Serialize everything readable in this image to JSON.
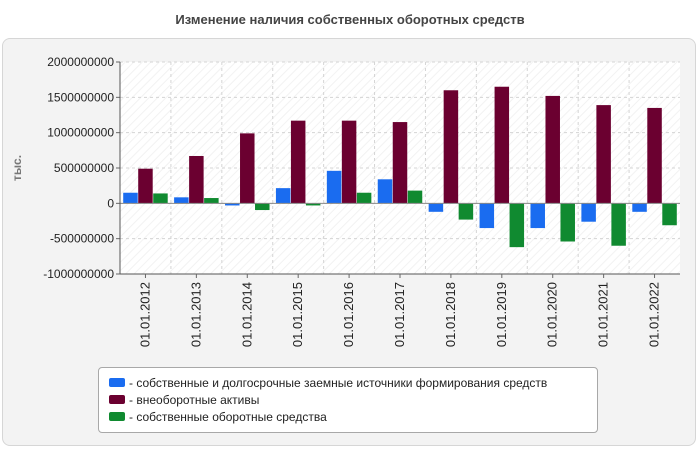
{
  "title": "Изменение наличия собственных оборотных средств",
  "chart_data": {
    "type": "bar",
    "title": "Изменение наличия собственных оборотных средств",
    "xlabel": "",
    "ylabel": "тыс.",
    "ylim": [
      -1000000000,
      2000000000
    ],
    "yticks": [
      2000000000,
      1500000000,
      1000000000,
      500000000,
      0,
      -500000000,
      -1000000000
    ],
    "ytick_labels": [
      "2000000000",
      "1500000000",
      "1000000000",
      "500000000",
      "0",
      "-500000000",
      "-1000000000"
    ],
    "grid": true,
    "legend_position": "bottom",
    "categories": [
      "01.01.2012",
      "01.01.2013",
      "01.01.2014",
      "01.01.2015",
      "01.01.2016",
      "01.01.2017",
      "01.01.2018",
      "01.01.2019",
      "01.01.2020",
      "01.01.2021",
      "01.01.2022"
    ],
    "series": [
      {
        "name": "собственные и долгосрочные заемные источники формирования средств",
        "color": "#1a6cf0",
        "values": [
          150000000,
          85000000,
          -30000000,
          215000000,
          460000000,
          340000000,
          -120000000,
          -350000000,
          -350000000,
          -260000000,
          -120000000
        ]
      },
      {
        "name": "внеоборотные активы",
        "color": "#6b0030",
        "values": [
          490000000,
          670000000,
          990000000,
          1170000000,
          1170000000,
          1150000000,
          1600000000,
          1650000000,
          1520000000,
          1390000000,
          1350000000
        ]
      },
      {
        "name": "собственные оборотные средства",
        "color": "#108a30",
        "values": [
          140000000,
          75000000,
          -95000000,
          -30000000,
          150000000,
          180000000,
          -230000000,
          -620000000,
          -540000000,
          -600000000,
          -310000000
        ]
      }
    ]
  }
}
